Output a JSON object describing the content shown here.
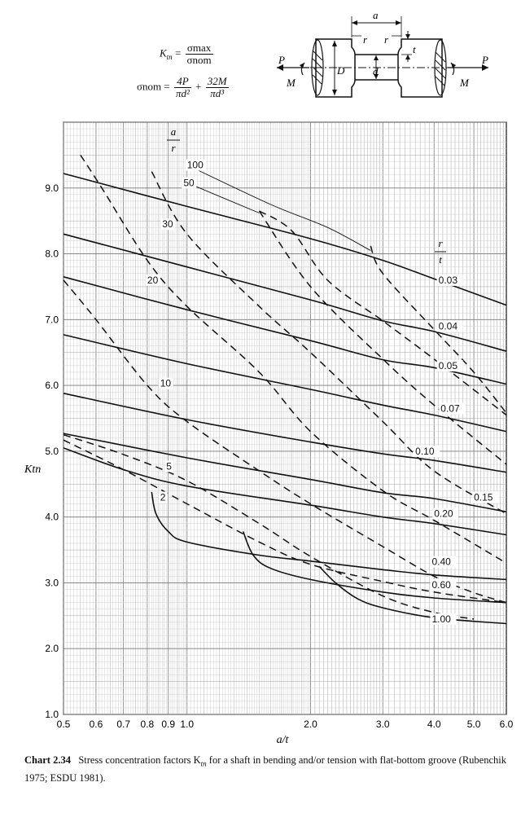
{
  "formulas": {
    "ktn_lhs": "K",
    "ktn_lhs_sub": "tn",
    "ktn_eq": "=",
    "ktn_num": "σmax",
    "ktn_den": "σnom",
    "snom_lhs": "σnom",
    "snom_eq": "=",
    "snom_t1_num": "4P",
    "snom_t1_den": "πd²",
    "snom_plus": "+",
    "snom_t2_num": "32M",
    "snom_t2_den": "πd³"
  },
  "diagram_labels": {
    "a": "a",
    "r_left": "r",
    "r_right": "r",
    "t": "t",
    "P_left": "P",
    "P_right": "P",
    "M_left": "M",
    "M_right": "M",
    "D": "D",
    "d": "d"
  },
  "caption": {
    "label": "Chart 2.34",
    "text": "Stress concentration factors K",
    "text_sub": "tn",
    "text_rest": " for a shaft in bending and/or tension with flat-bottom groove (Rubenchik 1975; ESDU 1981)."
  },
  "chart_data": {
    "type": "line",
    "xscale": "log",
    "xlim": [
      0.5,
      6.0
    ],
    "ylim": [
      1.0,
      10.0
    ],
    "xlabel": "a/t",
    "ylabel": "Ktn",
    "grid": true,
    "x_ticks": [
      {
        "v": 0.5,
        "label": "0.5"
      },
      {
        "v": 0.6,
        "label": "0.6"
      },
      {
        "v": 0.7,
        "label": "0.7"
      },
      {
        "v": 0.8,
        "label": "0.8"
      },
      {
        "v": 0.9,
        "label": "0.9"
      },
      {
        "v": 1.0,
        "label": "1.0"
      },
      {
        "v": 2.0,
        "label": "2.0"
      },
      {
        "v": 3.0,
        "label": "3.0"
      },
      {
        "v": 4.0,
        "label": "4.0"
      },
      {
        "v": 5.0,
        "label": "5.0"
      },
      {
        "v": 6.0,
        "label": "6.0"
      }
    ],
    "y_ticks": [
      {
        "v": 1.0,
        "label": "1.0"
      },
      {
        "v": 2.0,
        "label": "2.0"
      },
      {
        "v": 3.0,
        "label": "3.0"
      },
      {
        "v": 4.0,
        "label": "4.0"
      },
      {
        "v": 5.0,
        "label": "5.0"
      },
      {
        "v": 6.0,
        "label": "6.0"
      },
      {
        "v": 7.0,
        "label": "7.0"
      },
      {
        "v": 8.0,
        "label": "8.0"
      },
      {
        "v": 9.0,
        "label": "9.0"
      }
    ],
    "family_headers": {
      "a_over_r_num": "a",
      "a_over_r_den": "r",
      "r_over_t_num": "r",
      "r_over_t_den": "t"
    },
    "series": [
      {
        "name": "0.03",
        "style": "solid",
        "points": [
          [
            0.5,
            9.22
          ],
          [
            1.0,
            8.72
          ],
          [
            2.0,
            8.23
          ],
          [
            3.0,
            7.9
          ],
          [
            4.0,
            7.62
          ],
          [
            6.0,
            7.22
          ]
        ]
      },
      {
        "name": "0.04",
        "style": "solid",
        "points": [
          [
            0.5,
            8.3
          ],
          [
            1.0,
            7.8
          ],
          [
            2.0,
            7.3
          ],
          [
            3.0,
            6.98
          ],
          [
            4.0,
            6.82
          ],
          [
            6.0,
            6.52
          ]
        ]
      },
      {
        "name": "0.05",
        "style": "solid",
        "points": [
          [
            0.5,
            7.65
          ],
          [
            1.0,
            7.15
          ],
          [
            2.0,
            6.68
          ],
          [
            3.0,
            6.39
          ],
          [
            4.0,
            6.27
          ],
          [
            6.0,
            6.02
          ]
        ]
      },
      {
        "name": "0.07",
        "style": "solid",
        "points": [
          [
            0.5,
            6.77
          ],
          [
            1.0,
            6.33
          ],
          [
            2.0,
            5.94
          ],
          [
            3.0,
            5.7
          ],
          [
            4.0,
            5.55
          ],
          [
            6.0,
            5.3
          ]
        ]
      },
      {
        "name": "0.10",
        "style": "solid",
        "points": [
          [
            0.5,
            5.88
          ],
          [
            1.0,
            5.48
          ],
          [
            2.0,
            5.14
          ],
          [
            3.0,
            4.96
          ],
          [
            4.0,
            4.86
          ],
          [
            6.0,
            4.68
          ]
        ]
      },
      {
        "name": "0.15",
        "style": "solid",
        "points": [
          [
            0.5,
            5.27
          ],
          [
            1.0,
            4.9
          ],
          [
            2.0,
            4.57
          ],
          [
            3.0,
            4.37
          ],
          [
            4.0,
            4.28
          ],
          [
            6.0,
            4.08
          ]
        ]
      },
      {
        "name": "0.20",
        "style": "solid",
        "points": [
          [
            0.5,
            5.05
          ],
          [
            0.7,
            4.72
          ],
          [
            1.0,
            4.47
          ],
          [
            2.0,
            4.18
          ],
          [
            3.0,
            4.0
          ],
          [
            4.0,
            3.9
          ],
          [
            6.0,
            3.73
          ]
        ]
      },
      {
        "name": "0.40",
        "style": "solid",
        "points": [
          [
            0.82,
            4.38
          ],
          [
            0.84,
            4.05
          ],
          [
            0.9,
            3.78
          ],
          [
            1.0,
            3.62
          ],
          [
            1.5,
            3.42
          ],
          [
            2.0,
            3.33
          ],
          [
            3.0,
            3.2
          ],
          [
            4.0,
            3.12
          ],
          [
            6.0,
            3.05
          ]
        ]
      },
      {
        "name": "0.60",
        "style": "solid",
        "points": [
          [
            1.37,
            3.78
          ],
          [
            1.45,
            3.42
          ],
          [
            1.6,
            3.22
          ],
          [
            2.0,
            3.05
          ],
          [
            3.0,
            2.86
          ],
          [
            4.0,
            2.77
          ],
          [
            6.0,
            2.7
          ]
        ]
      },
      {
        "name": "1.00",
        "style": "solid",
        "points": [
          [
            2.1,
            3.25
          ],
          [
            2.3,
            3.0
          ],
          [
            2.6,
            2.76
          ],
          [
            3.0,
            2.62
          ],
          [
            4.0,
            2.47
          ],
          [
            6.0,
            2.38
          ]
        ]
      },
      {
        "name": "100",
        "style": "thin",
        "points": [
          [
            1.0,
            9.35
          ],
          [
            1.6,
            8.75
          ],
          [
            2.2,
            8.4
          ],
          [
            2.8,
            8.05
          ]
        ]
      },
      {
        "name": "50",
        "style": "thin",
        "points": [
          [
            1.0,
            9.08
          ],
          [
            1.5,
            8.62
          ]
        ]
      },
      {
        "name": "2",
        "style": "dashed",
        "points": [
          [
            0.5,
            5.17
          ],
          [
            0.7,
            4.72
          ],
          [
            1.0,
            4.2
          ],
          [
            1.5,
            3.62
          ],
          [
            2.0,
            3.28
          ],
          [
            3.0,
            3.02
          ],
          [
            4.0,
            2.86
          ],
          [
            6.0,
            2.7
          ]
        ]
      },
      {
        "name": "5",
        "style": "dashed",
        "points": [
          [
            0.5,
            5.25
          ],
          [
            0.7,
            4.95
          ],
          [
            1.0,
            4.55
          ],
          [
            1.5,
            3.9
          ],
          [
            2.0,
            3.4
          ],
          [
            3.0,
            2.8
          ],
          [
            4.0,
            2.55
          ],
          [
            5.0,
            2.45
          ]
        ]
      },
      {
        "name": "10",
        "style": "dashed",
        "points": [
          [
            0.5,
            7.6
          ],
          [
            0.6,
            7.0
          ],
          [
            0.8,
            6.0
          ],
          [
            1.0,
            5.45
          ],
          [
            1.5,
            4.7
          ],
          [
            2.0,
            4.2
          ],
          [
            3.0,
            3.55
          ],
          [
            4.0,
            3.1
          ],
          [
            5.0,
            2.85
          ],
          [
            6.0,
            2.7
          ]
        ]
      },
      {
        "name": "20",
        "style": "dashed",
        "points": [
          [
            0.55,
            9.5
          ],
          [
            0.62,
            9.0
          ],
          [
            0.8,
            7.9
          ],
          [
            1.0,
            7.2
          ],
          [
            1.5,
            6.2
          ],
          [
            2.0,
            5.3
          ],
          [
            3.0,
            4.4
          ],
          [
            4.0,
            3.95
          ],
          [
            6.0,
            3.3
          ]
        ]
      },
      {
        "name": "30",
        "style": "dashed",
        "points": [
          [
            0.82,
            9.25
          ],
          [
            1.0,
            8.3
          ],
          [
            1.5,
            7.2
          ],
          [
            2.0,
            6.5
          ],
          [
            3.0,
            5.45
          ],
          [
            4.0,
            4.7
          ],
          [
            6.0,
            4.05
          ]
        ]
      },
      {
        "name": "50",
        "style": "dashed",
        "points": [
          [
            1.5,
            8.65
          ],
          [
            2.0,
            7.5
          ],
          [
            3.0,
            6.4
          ],
          [
            4.0,
            5.7
          ],
          [
            6.0,
            4.8
          ]
        ]
      },
      {
        "name": "100",
        "style": "dashed",
        "points": [
          [
            1.5,
            8.65
          ],
          [
            1.8,
            8.35
          ],
          [
            2.2,
            7.6
          ],
          [
            3.0,
            6.98
          ],
          [
            4.0,
            6.4
          ],
          [
            6.0,
            5.55
          ]
        ]
      },
      {
        "name": "100",
        "style": "dashed",
        "points": [
          [
            2.8,
            8.12
          ],
          [
            3.0,
            7.7
          ],
          [
            4.0,
            6.85
          ],
          [
            5.0,
            6.2
          ],
          [
            6.0,
            5.58
          ]
        ]
      }
    ],
    "annotations": [
      {
        "text": "100",
        "x": 1.0,
        "y": 9.3
      },
      {
        "text": "50",
        "x": 0.98,
        "y": 9.03
      },
      {
        "text": "30",
        "x": 0.87,
        "y": 8.4
      },
      {
        "text": "20",
        "x": 0.8,
        "y": 7.55
      },
      {
        "text": "10",
        "x": 0.86,
        "y": 5.98
      },
      {
        "text": "5",
        "x": 0.89,
        "y": 4.72
      },
      {
        "text": "2",
        "x": 0.86,
        "y": 4.25
      },
      {
        "text": "0.03",
        "x": 4.1,
        "y": 7.55
      },
      {
        "text": "0.04",
        "x": 4.1,
        "y": 6.85
      },
      {
        "text": "0.05",
        "x": 4.1,
        "y": 6.25
      },
      {
        "text": "0.07",
        "x": 4.15,
        "y": 5.6
      },
      {
        "text": "0.10",
        "x": 3.6,
        "y": 4.95
      },
      {
        "text": "0.15",
        "x": 5.0,
        "y": 4.25
      },
      {
        "text": "0.20",
        "x": 4.0,
        "y": 4.0
      },
      {
        "text": "0.40",
        "x": 3.95,
        "y": 3.27
      },
      {
        "text": "0.60",
        "x": 3.95,
        "y": 2.92
      },
      {
        "text": "1.00",
        "x": 3.95,
        "y": 2.4
      }
    ]
  }
}
